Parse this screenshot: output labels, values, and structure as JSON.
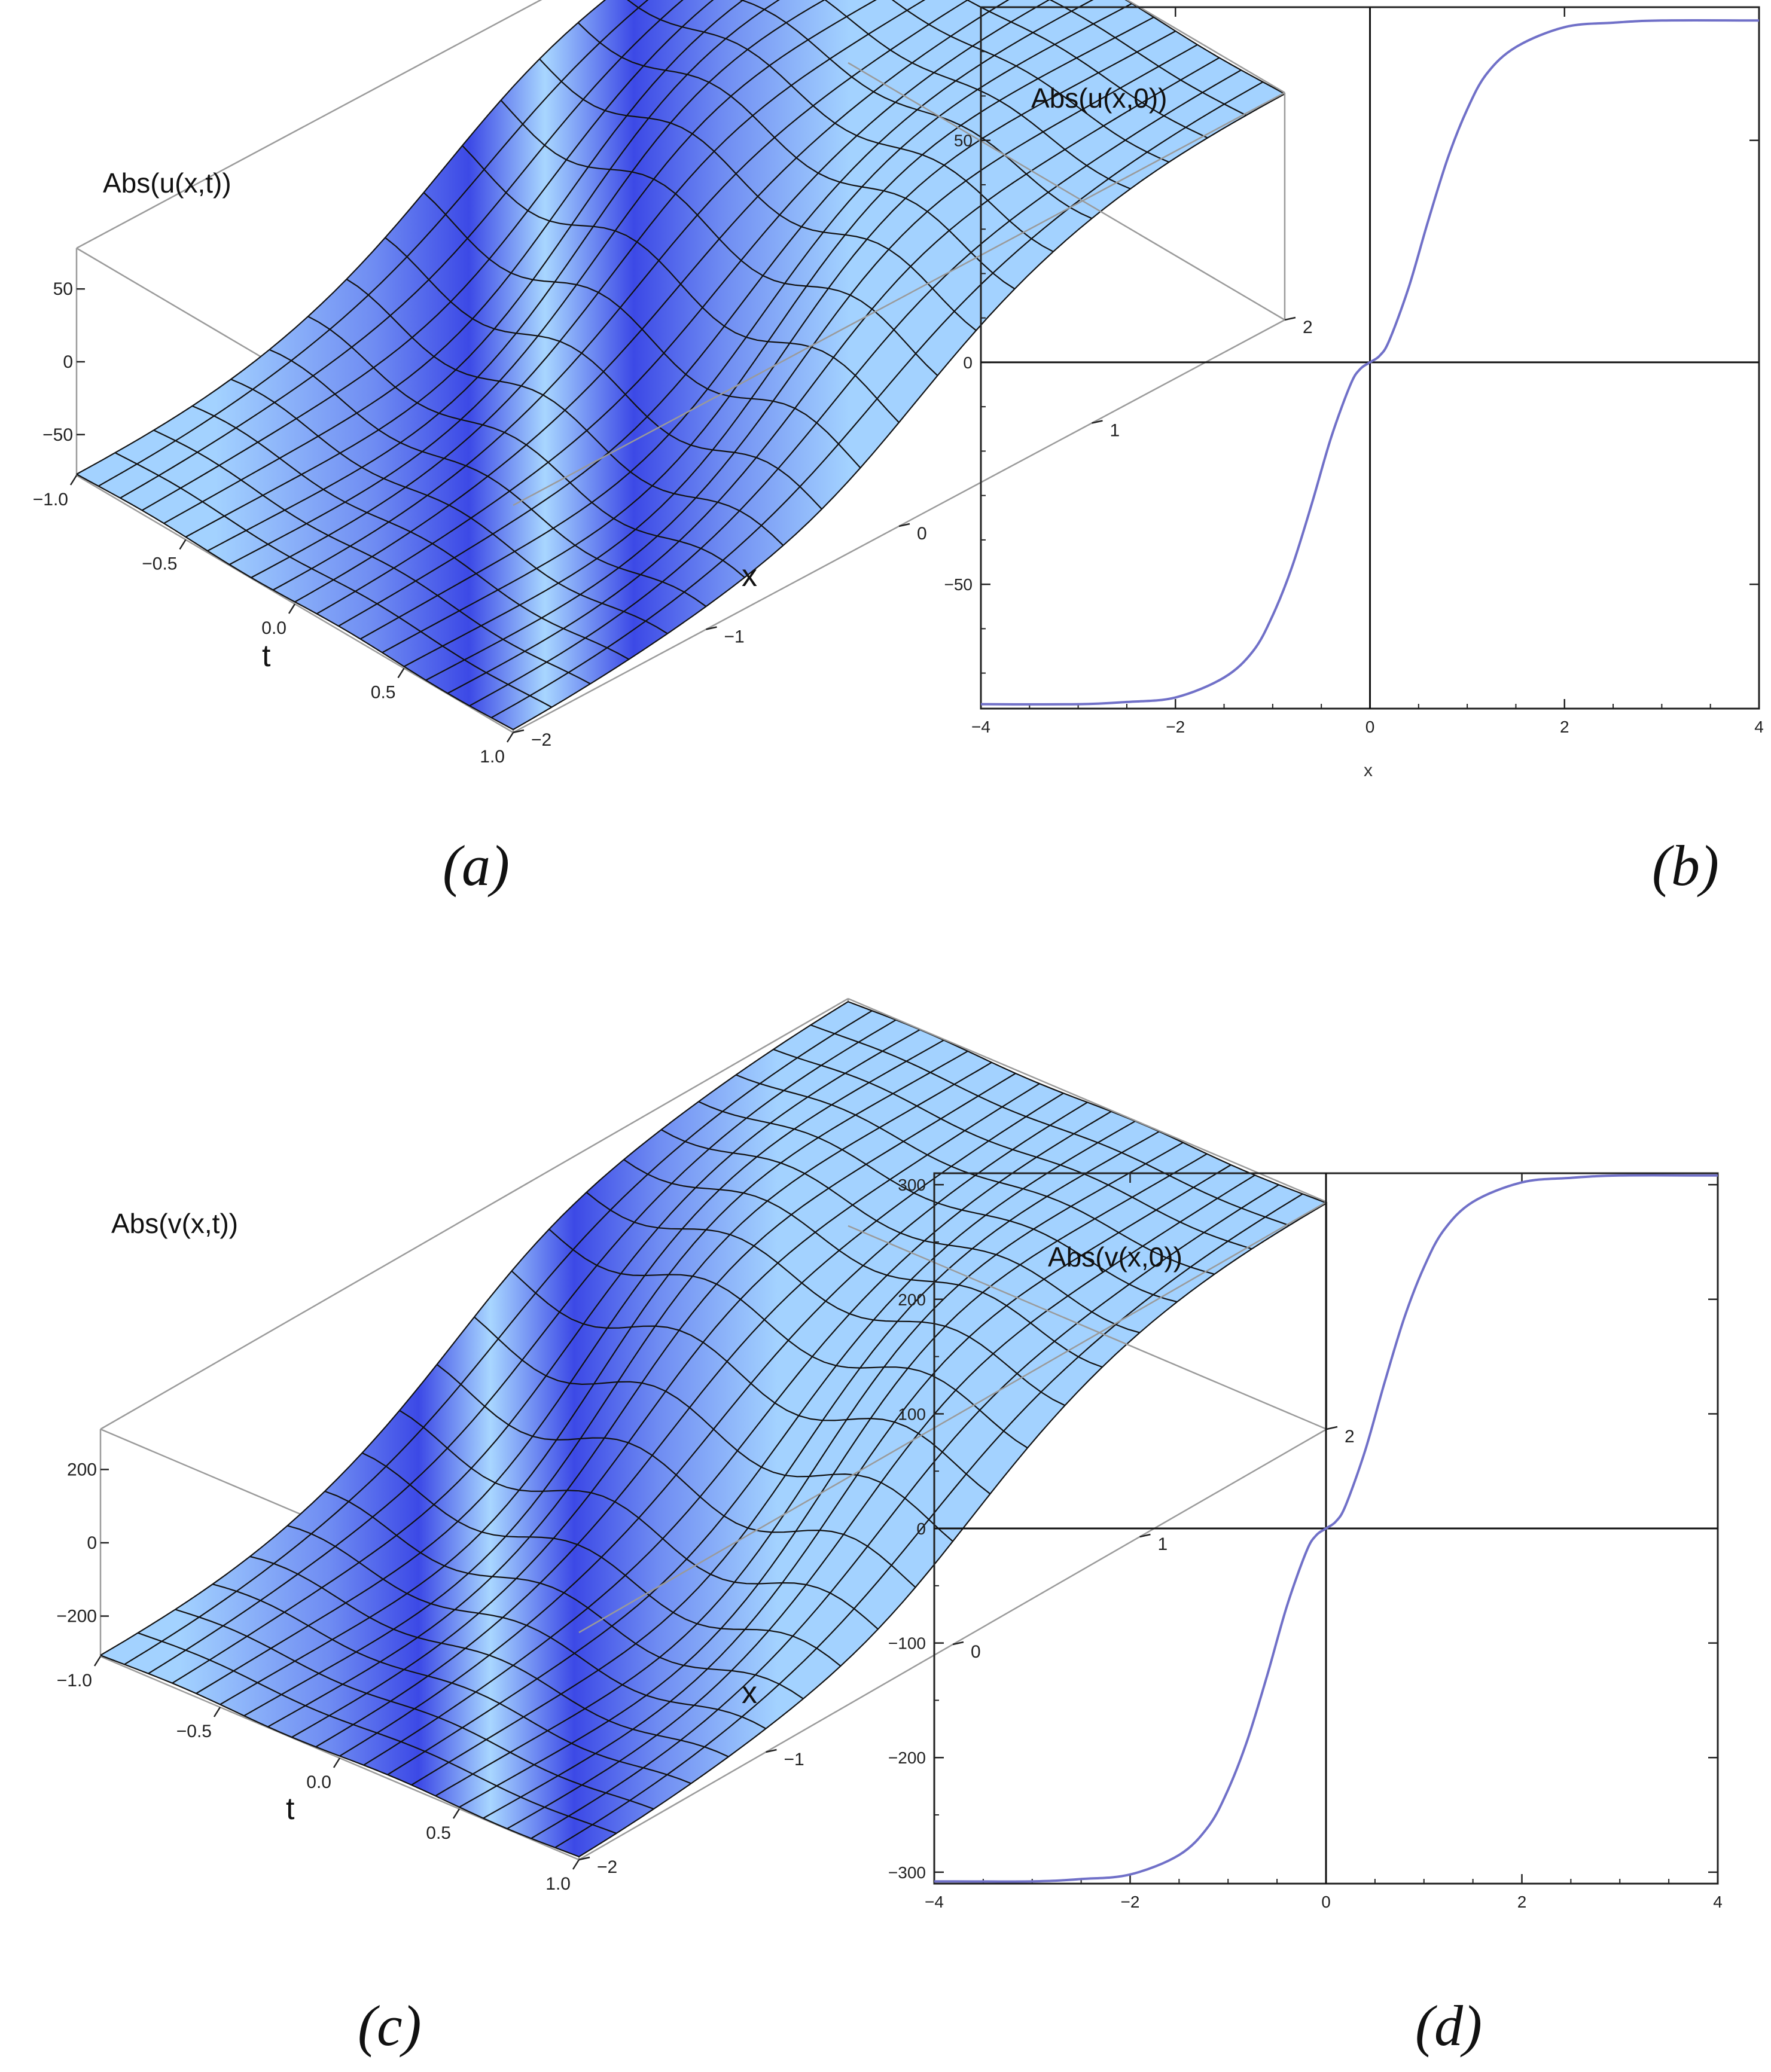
{
  "panel_a": {
    "caption": "(a)",
    "zlabel": "Abs(u(x,t))",
    "xlabel": "x",
    "tlabel": "t",
    "z_ticks": [
      "50",
      "0",
      "−50"
    ],
    "x_ticks": [
      "2",
      "1",
      "0",
      "−1",
      "−2"
    ],
    "t_ticks": [
      "−1.0",
      "−0.5",
      "0.0",
      "0.5",
      "1.0"
    ]
  },
  "panel_c": {
    "caption": "(c)",
    "zlabel": "Abs(v(x,t))",
    "xlabel": "x",
    "tlabel": "t",
    "z_ticks": [
      "200",
      "0",
      "−200"
    ],
    "x_ticks": [
      "2",
      "1",
      "0",
      "−1",
      "−2"
    ],
    "t_ticks": [
      "−1.0",
      "−0.5",
      "0.0",
      "0.5",
      "1.0"
    ]
  },
  "panel_b": {
    "caption": "(b)",
    "xlabel": "x",
    "inset_label": "Abs(u(x,0))",
    "x_ticks": [
      "−4",
      "−2",
      "0",
      "2",
      "4"
    ],
    "y_ticks": [
      "50",
      "0",
      "−50"
    ]
  },
  "panel_d": {
    "caption": "(d)",
    "inset_label": "Abs(v(x,0))",
    "x_ticks": [
      "−4",
      "−2",
      "0",
      "2",
      "4"
    ],
    "y_ticks": [
      "300",
      "200",
      "100",
      "0",
      "−100",
      "−200",
      "−300"
    ]
  },
  "colors": {
    "curve": "#7070c8",
    "surface_dark": "#3b48e6",
    "surface_light": "#a3d2ff",
    "mesh": "#111111"
  },
  "chart_data": [
    {
      "type": "surface",
      "panel": "a",
      "function": "Abs(u(x,t))",
      "x_range": [
        -2,
        2
      ],
      "t_range": [
        -1,
        1
      ],
      "z_range": [
        -78,
        78
      ],
      "z_ticks": [
        -50,
        0,
        50
      ],
      "x_ticks": [
        -2,
        -1,
        0,
        1,
        2
      ],
      "t_ticks": [
        -1.0,
        -0.5,
        0.0,
        0.5,
        1.0
      ],
      "mesh_x": [
        -2.0,
        -1.6,
        -1.2,
        -0.8,
        -0.4,
        0.0,
        0.4,
        0.8,
        1.2,
        1.6,
        2.0
      ],
      "mesh_t": [
        -1.0,
        -0.8,
        -0.6,
        -0.4,
        -0.2,
        0.0,
        0.2,
        0.4,
        0.6,
        0.8,
        1.0
      ],
      "profile_z_at_mesh_x": [
        -77,
        -75,
        -70,
        -58,
        -33,
        0,
        33,
        58,
        70,
        75,
        77
      ]
    },
    {
      "type": "line",
      "panel": "b",
      "xlabel": "x",
      "xlim": [
        -4,
        4
      ],
      "ylim": [
        -78,
        80
      ],
      "x_ticks": [
        -4,
        -2,
        0,
        2,
        4
      ],
      "y_ticks": [
        -50,
        0,
        50
      ],
      "series": [
        {
          "name": "Abs(u(x,0))",
          "x": [
            -4.0,
            -3.0,
            -2.5,
            -2.0,
            -1.5,
            -1.2,
            -1.0,
            -0.8,
            -0.6,
            -0.4,
            -0.2,
            -0.1,
            0.0,
            0.1,
            0.2,
            0.4,
            0.6,
            0.8,
            1.0,
            1.2,
            1.5,
            2.0,
            2.5,
            3.0,
            4.0
          ],
          "y": [
            -77,
            -77,
            -76.5,
            -75.5,
            -71,
            -65,
            -57,
            -46,
            -32,
            -17,
            -5,
            -1.5,
            0,
            1.5,
            5,
            17,
            32,
            46,
            57,
            65,
            71,
            75.5,
            76.5,
            77,
            77
          ]
        }
      ]
    },
    {
      "type": "surface",
      "panel": "c",
      "function": "Abs(v(x,t))",
      "x_range": [
        -2,
        2
      ],
      "t_range": [
        -1,
        1
      ],
      "z_range": [
        -310,
        310
      ],
      "z_ticks": [
        -200,
        0,
        200
      ],
      "x_ticks": [
        -2,
        -1,
        0,
        1,
        2
      ],
      "t_ticks": [
        -1.0,
        -0.5,
        0.0,
        0.5,
        1.0
      ],
      "mesh_x": [
        -2.0,
        -1.6,
        -1.2,
        -0.8,
        -0.4,
        0.0,
        0.4,
        0.8,
        1.2,
        1.6,
        2.0
      ],
      "mesh_t": [
        -1.0,
        -0.8,
        -0.6,
        -0.4,
        -0.2,
        0.0,
        0.2,
        0.4,
        0.6,
        0.8,
        1.0
      ],
      "profile_z_at_mesh_x": [
        -308,
        -300,
        -280,
        -232,
        -132,
        0,
        132,
        232,
        280,
        300,
        308
      ]
    },
    {
      "type": "line",
      "panel": "d",
      "xlim": [
        -4,
        4
      ],
      "ylim": [
        -310,
        310
      ],
      "x_ticks": [
        -4,
        -2,
        0,
        2,
        4
      ],
      "y_ticks": [
        -300,
        -200,
        -100,
        0,
        100,
        200,
        300
      ],
      "series": [
        {
          "name": "Abs(v(x,0))",
          "x": [
            -4.0,
            -3.0,
            -2.5,
            -2.0,
            -1.5,
            -1.2,
            -1.0,
            -0.8,
            -0.6,
            -0.4,
            -0.2,
            -0.1,
            0.0,
            0.1,
            0.2,
            0.4,
            0.6,
            0.8,
            1.0,
            1.2,
            1.5,
            2.0,
            2.5,
            3.0,
            4.0
          ],
          "y": [
            -308,
            -308,
            -306,
            -302,
            -285,
            -260,
            -228,
            -184,
            -128,
            -68,
            -20,
            -6,
            0,
            6,
            20,
            68,
            128,
            184,
            228,
            260,
            285,
            302,
            306,
            308,
            308
          ]
        }
      ]
    }
  ]
}
